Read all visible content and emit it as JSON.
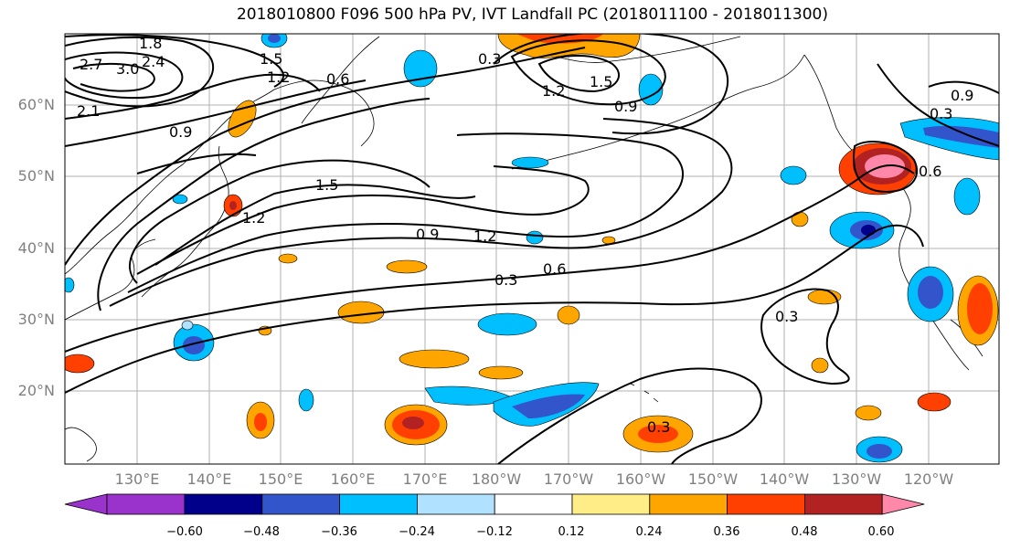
{
  "title": "2018010800 F096 500 hPa PV, IVT Landfall PC (2018011100 - 2018011300)",
  "axes": {
    "lat_labels": [
      "60°N",
      "50°N",
      "40°N",
      "30°N",
      "20°N"
    ],
    "lon_labels": [
      "130°E",
      "140°E",
      "150°E",
      "160°E",
      "170°E",
      "180°W",
      "170°W",
      "160°W",
      "150°W",
      "140°W",
      "130°W",
      "120°W"
    ]
  },
  "contour_labels": [
    "1.8",
    "2.7",
    "3.0",
    "2.4",
    "1.5",
    "1.2",
    "2.1",
    "0.6",
    "0.9",
    "0.3",
    "1.5",
    "0.9",
    "1.2",
    "0.6",
    "0.3",
    "1.5",
    "1.2",
    "0.9",
    "0.3",
    "0.3",
    "0.6",
    "0.9",
    "1.2",
    "0.3"
  ],
  "colorbar": {
    "ticks": [
      "−0.60",
      "−0.48",
      "−0.36",
      "−0.24",
      "−0.12",
      "0.12",
      "0.24",
      "0.36",
      "0.48",
      "0.60"
    ],
    "colors": [
      "#9933cc",
      "#00008b",
      "#3355cc",
      "#00bfff",
      "#b0e2ff",
      "#ffffff",
      "#ffee88",
      "#ffa500",
      "#ff4000",
      "#b22222",
      "#ff88aa"
    ]
  },
  "fill_colors": {
    "neg1": "#b0e2ff",
    "neg2": "#00bfff",
    "neg3": "#3355cc",
    "neg4": "#00008b",
    "pos1": "#ffee88",
    "pos2": "#ffa500",
    "pos3": "#ff4000",
    "pos4": "#b22222",
    "pos5": "#ff88aa"
  }
}
